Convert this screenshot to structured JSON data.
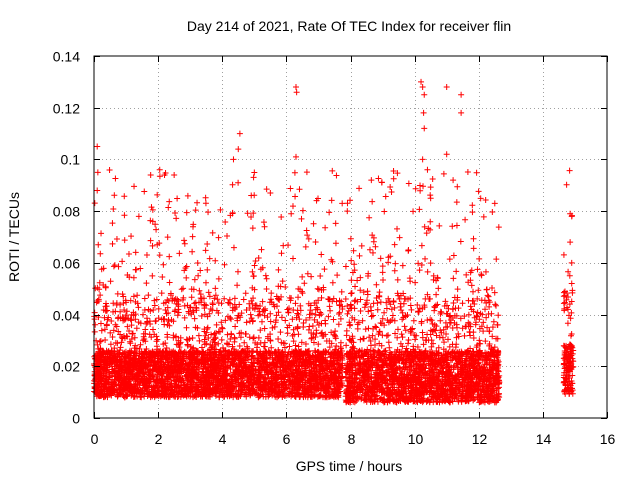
{
  "chart_data": {
    "type": "scatter",
    "title": "Day 214 of 2021, Rate Of TEC Index for receiver flin",
    "xlabel": "GPS time / hours",
    "ylabel": "ROTI / TECUs",
    "xlim": [
      0,
      16
    ],
    "ylim": [
      0,
      0.14
    ],
    "xticks": [
      0,
      2,
      4,
      6,
      8,
      10,
      12,
      14,
      16
    ],
    "yticks": [
      0,
      0.02,
      0.04,
      0.06,
      0.08,
      0.1,
      0.12,
      0.14
    ],
    "xtick_labels": [
      "0",
      "2",
      "4",
      "6",
      "8",
      "10",
      "12",
      "14",
      "16"
    ],
    "ytick_labels": [
      "0",
      "0.02",
      "0.04",
      "0.06",
      "0.08",
      "0.1",
      "0.12",
      "0.14"
    ],
    "grid": true,
    "marker": "+",
    "color": "#ff0000",
    "series": [
      {
        "name": "ROTI",
        "segments": [
          {
            "x_range": [
              0.0,
              7.75
            ],
            "base_range": [
              0.008,
              0.026
            ]
          },
          {
            "x_range": [
              7.85,
              12.65
            ],
            "base_range": [
              0.006,
              0.026
            ]
          },
          {
            "x_range": [
              14.65,
              14.95
            ],
            "base_range": [
              0.009,
              0.028
            ]
          }
        ],
        "notable_points": [
          {
            "x": 0.1,
            "y": 0.105
          },
          {
            "x": 0.12,
            "y": 0.095
          },
          {
            "x": 0.1,
            "y": 0.088
          },
          {
            "x": 1.4,
            "y": 0.078
          },
          {
            "x": 2.05,
            "y": 0.096
          },
          {
            "x": 2.2,
            "y": 0.094
          },
          {
            "x": 2.5,
            "y": 0.094
          },
          {
            "x": 4.35,
            "y": 0.1
          },
          {
            "x": 4.55,
            "y": 0.11
          },
          {
            "x": 4.5,
            "y": 0.104
          },
          {
            "x": 5.5,
            "y": 0.087
          },
          {
            "x": 6.15,
            "y": 0.079
          },
          {
            "x": 6.3,
            "y": 0.128
          },
          {
            "x": 6.32,
            "y": 0.126
          },
          {
            "x": 6.3,
            "y": 0.101
          },
          {
            "x": 7.9,
            "y": 0.08
          },
          {
            "x": 8.65,
            "y": 0.092
          },
          {
            "x": 10.2,
            "y": 0.13
          },
          {
            "x": 10.25,
            "y": 0.128
          },
          {
            "x": 10.3,
            "y": 0.125
          },
          {
            "x": 10.28,
            "y": 0.118
          },
          {
            "x": 10.3,
            "y": 0.112
          },
          {
            "x": 10.25,
            "y": 0.1
          },
          {
            "x": 10.4,
            "y": 0.096
          },
          {
            "x": 10.5,
            "y": 0.085
          },
          {
            "x": 11.0,
            "y": 0.128
          },
          {
            "x": 11.0,
            "y": 0.102
          },
          {
            "x": 11.45,
            "y": 0.125
          },
          {
            "x": 11.45,
            "y": 0.118
          },
          {
            "x": 11.2,
            "y": 0.092
          },
          {
            "x": 12.5,
            "y": 0.083
          },
          {
            "x": 14.85,
            "y": 0.079
          },
          {
            "x": 14.9,
            "y": 0.078
          },
          {
            "x": 14.85,
            "y": 0.068
          },
          {
            "x": 14.9,
            "y": 0.06
          },
          {
            "x": 14.9,
            "y": 0.052
          }
        ]
      }
    ]
  }
}
